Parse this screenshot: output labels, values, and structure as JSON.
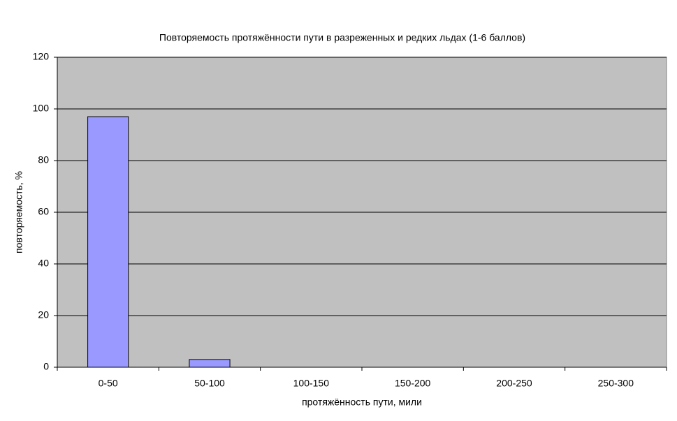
{
  "chart_data": {
    "type": "bar",
    "title": "Повторяемость протяжённости пути в разреженных и редких льдах (1-6 баллов)",
    "x_label": "протяжённость пути, мили",
    "y_label": "повторяемость, %",
    "categories": [
      "0-50",
      "50-100",
      "100-150",
      "150-200",
      "200-250",
      "250-300"
    ],
    "values": [
      97,
      3,
      0,
      0,
      0,
      0
    ],
    "color": "#9999ff",
    "ylim": [
      0,
      120
    ],
    "yticks": [
      0,
      20,
      40,
      60,
      80,
      100,
      120
    ],
    "grid": true
  }
}
